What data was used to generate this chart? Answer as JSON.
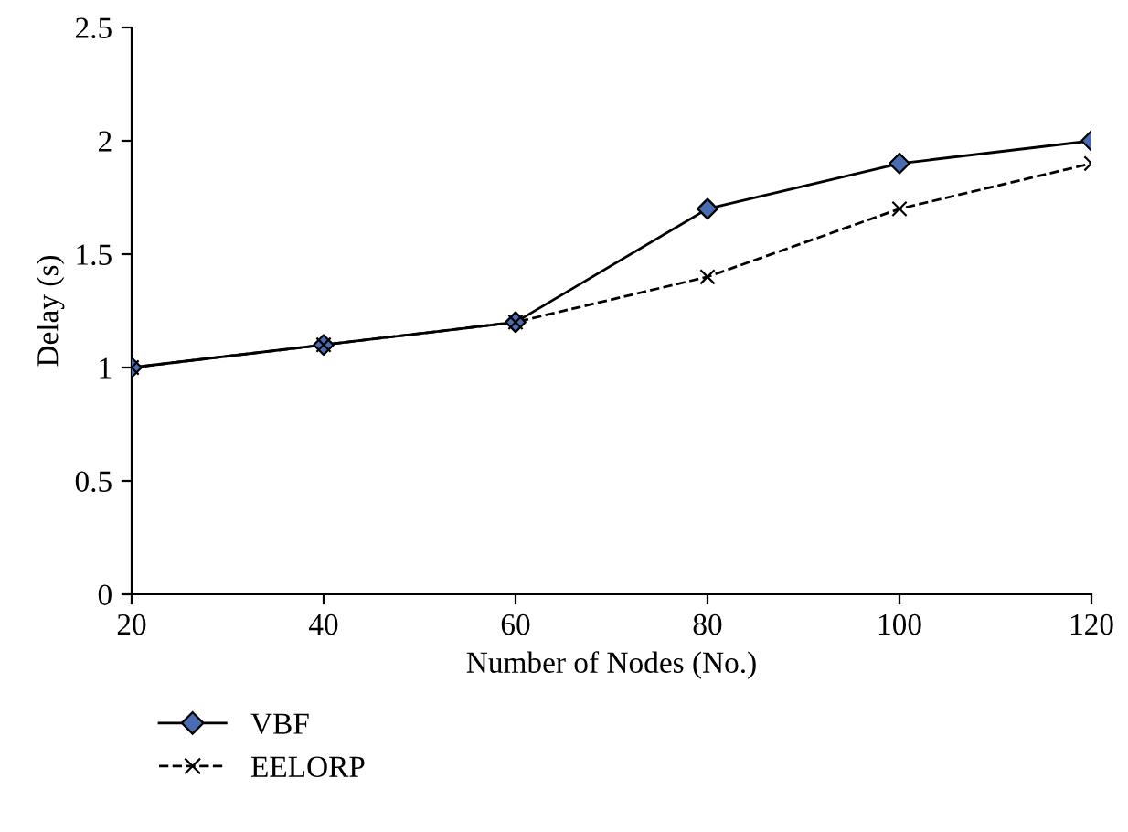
{
  "chart_data": {
    "type": "line",
    "xlabel": "Number of Nodes (No.)",
    "ylabel": "Delay (s)",
    "x": [
      20,
      40,
      60,
      80,
      100,
      120
    ],
    "series": [
      {
        "name": "VBF",
        "color": "#000000",
        "colors": [
          "#4a6cb3",
          "#4a6cb3",
          "#4a6cb3",
          "#4a6cb3",
          "#4a6cb3",
          "#4a6cb3"
        ],
        "marker": "diamond",
        "line_style": "solid",
        "values": [
          1,
          1.1,
          1.2,
          1.7,
          1.9,
          2.0
        ]
      },
      {
        "name": "EELORP",
        "color": "#000000",
        "marker": "cross",
        "line_style": "dashed",
        "values": [
          1,
          1.1,
          1.2,
          1.4,
          1.7,
          1.9
        ]
      }
    ],
    "xlim": [
      20,
      120
    ],
    "xticks": [
      20,
      40,
      60,
      80,
      100,
      120
    ],
    "ylim": [
      0,
      2.5
    ],
    "yticks": [
      0,
      0.5,
      1,
      1.5,
      2,
      2.5
    ],
    "grid": false,
    "legend": "bottom left"
  }
}
